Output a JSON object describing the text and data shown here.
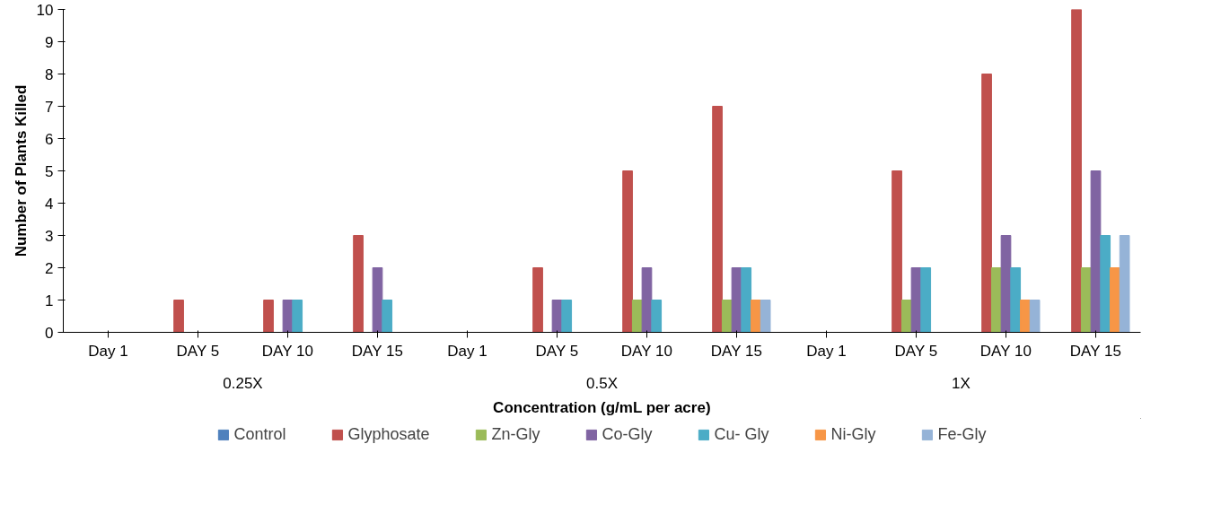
{
  "chart_data": {
    "type": "bar",
    "ylabel": "Number of Plants Killed",
    "xlabel": "Concentration (g/mL per acre)",
    "categories": [
      "Day 1",
      "DAY 5",
      "DAY 10",
      "DAY 15",
      "Day 1",
      "DAY 5",
      "DAY 10",
      "DAY 15",
      "Day 1",
      "DAY 5",
      "DAY 10",
      "DAY 15"
    ],
    "annotations": [
      "0.25X",
      "0.5X",
      "1X"
    ],
    "series": [
      {
        "name": "Control",
        "color": "#4f81bd",
        "values": [
          0,
          0,
          0,
          0,
          0,
          0,
          0,
          0,
          0,
          0,
          0,
          0
        ]
      },
      {
        "name": "Glyphosate",
        "color": "#c0504d",
        "values": [
          0,
          1,
          1,
          3,
          0,
          2,
          5,
          7,
          0,
          5,
          8,
          10
        ]
      },
      {
        "name": "Zn-Gly",
        "color": "#9bbb59",
        "values": [
          0,
          0,
          0,
          0,
          0,
          0,
          1,
          1,
          0,
          1,
          2,
          2
        ]
      },
      {
        "name": "Co-Gly",
        "color": "#8064a2",
        "values": [
          0,
          0,
          1,
          2,
          0,
          1,
          2,
          2,
          0,
          2,
          3,
          5
        ]
      },
      {
        "name": "Cu- Gly",
        "color": "#4bacc6",
        "values": [
          0,
          0,
          1,
          1,
          0,
          1,
          1,
          2,
          0,
          2,
          2,
          3
        ]
      },
      {
        "name": "Ni-Gly",
        "color": "#f79646",
        "values": [
          0,
          0,
          0,
          0,
          0,
          0,
          0,
          1,
          0,
          0,
          1,
          2
        ]
      },
      {
        "name": "Fe-Gly",
        "color": "#95b3d7",
        "values": [
          0,
          0,
          0,
          0,
          0,
          0,
          0,
          1,
          0,
          0,
          1,
          3
        ]
      }
    ],
    "ylim": [
      0,
      10
    ],
    "yticks": [
      0,
      1,
      2,
      3,
      4,
      5,
      6,
      7,
      8,
      9,
      10
    ],
    "grid": false,
    "legend": "bottom"
  }
}
